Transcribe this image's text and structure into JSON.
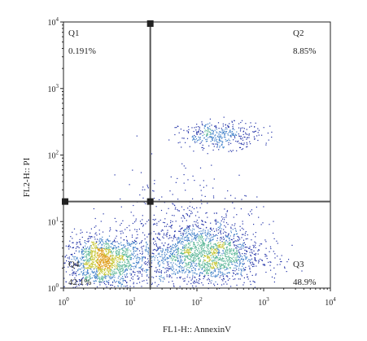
{
  "chart_data": {
    "type": "scatter",
    "title": "",
    "xlabel": "FL1-H:: AnnexinV",
    "ylabel": "FL2-H:: PI",
    "xscale": "log",
    "yscale": "log",
    "xlim": [
      1,
      10000
    ],
    "ylim": [
      1,
      10000
    ],
    "x_ticks": [
      {
        "value": 1,
        "base": "10",
        "exp": "0"
      },
      {
        "value": 10,
        "base": "10",
        "exp": "1"
      },
      {
        "value": 100,
        "base": "10",
        "exp": "2"
      },
      {
        "value": 1000,
        "base": "10",
        "exp": "3"
      },
      {
        "value": 10000,
        "base": "10",
        "exp": "4"
      }
    ],
    "y_ticks": [
      {
        "value": 1,
        "base": "10",
        "exp": "0"
      },
      {
        "value": 10,
        "base": "10",
        "exp": "1"
      },
      {
        "value": 100,
        "base": "10",
        "exp": "2"
      },
      {
        "value": 1000,
        "base": "10",
        "exp": "3"
      },
      {
        "value": 10000,
        "base": "10",
        "exp": "4"
      }
    ],
    "gate": {
      "x": 20,
      "y": 20
    },
    "quadrants": [
      {
        "label": "Q1",
        "percent": "0.191%",
        "position": "top-left"
      },
      {
        "label": "Q2",
        "percent": "8.85%",
        "position": "top-right"
      },
      {
        "label": "Q3",
        "percent": "48.9%",
        "position": "bottom-right"
      },
      {
        "label": "Q4",
        "percent": "42.1%",
        "position": "bottom-left"
      }
    ],
    "populations": [
      {
        "cx": 4,
        "cy": 2.5,
        "sx": 0.3,
        "sy": 0.2,
        "n": 1500
      },
      {
        "cx": 120,
        "cy": 3.2,
        "sx": 0.45,
        "sy": 0.24,
        "n": 1900
      },
      {
        "cx": 220,
        "cy": 200,
        "sx": 0.3,
        "sy": 0.1,
        "n": 380
      },
      {
        "cx": 60,
        "cy": 12,
        "sx": 0.55,
        "sy": 0.4,
        "n": 260
      }
    ],
    "density_colors": [
      "#1f2fa6",
      "#3f7fc8",
      "#5fb89a",
      "#c8c83a",
      "#e0a020"
    ],
    "grid": false
  }
}
